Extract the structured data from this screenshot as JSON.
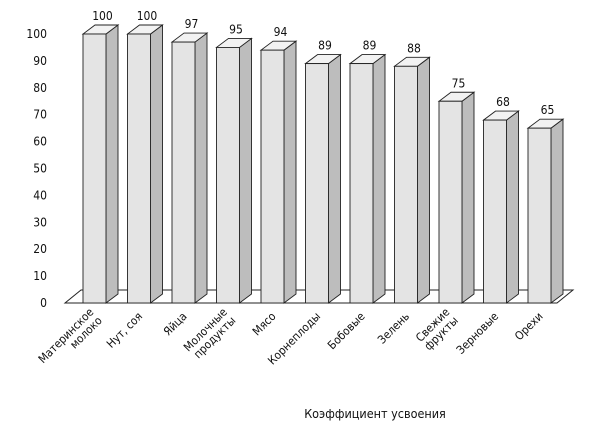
{
  "chart_data": {
    "type": "bar",
    "style": "3d-column",
    "title": "",
    "xlabel": "Коэффициент усвоения",
    "ylabel": "",
    "ylim": [
      0,
      100
    ],
    "yticks": [
      0,
      10,
      20,
      30,
      40,
      50,
      60,
      70,
      80,
      90,
      100
    ],
    "grid": false,
    "legend": "none",
    "bar_color": "#e4e4e4",
    "categories": [
      [
        "Материнское",
        "молоко"
      ],
      [
        "Нут, соя"
      ],
      [
        "Яйца"
      ],
      [
        "Молочные",
        "продукты"
      ],
      [
        "Мясо"
      ],
      [
        "Корнеплоды"
      ],
      [
        "Бобовые"
      ],
      [
        "Зелень"
      ],
      [
        "Свежие",
        "фрукты"
      ],
      [
        "Зерновые"
      ],
      [
        "Орехи"
      ]
    ],
    "values": [
      100,
      100,
      97,
      95,
      94,
      89,
      89,
      88,
      75,
      68,
      65
    ],
    "data_labels": [
      "100",
      "100",
      "97",
      "95",
      "94",
      "89",
      "89",
      "88",
      "75",
      "68",
      "65"
    ]
  }
}
